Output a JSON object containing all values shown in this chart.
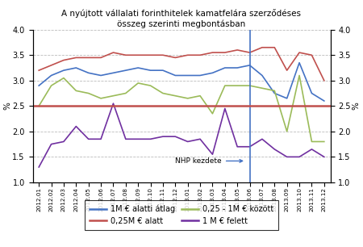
{
  "title": "A nyújtott vállalati forinthitelek kamatfelára szerződéses\nösszeg szerinti megbontásban",
  "ylabel": "%",
  "ylabel_right": "%",
  "ylim": [
    1.0,
    4.0
  ],
  "yticks": [
    1.0,
    1.5,
    2.0,
    2.5,
    3.0,
    3.5,
    4.0
  ],
  "labels": [
    "2012.01",
    "2012.02",
    "2012.03",
    "2012.04",
    "2012.05",
    "2012.06",
    "2012.07",
    "2012.08",
    "2012.09",
    "2012.10",
    "2012.11",
    "2012.12",
    "2013.01",
    "2013.02",
    "2013.03",
    "2013.04",
    "2013.05",
    "2013.06",
    "2013.07",
    "2013.08",
    "2013.09",
    "2013.10",
    "2013.11",
    "2013.12"
  ],
  "nhp_index": 17,
  "nhp_label": "NHP kezdete",
  "blue_line": [
    2.9,
    3.1,
    3.2,
    3.25,
    3.15,
    3.1,
    3.15,
    3.2,
    3.25,
    3.2,
    3.2,
    3.1,
    3.1,
    3.1,
    3.15,
    3.25,
    3.25,
    3.3,
    3.1,
    2.75,
    2.65,
    3.35,
    2.75,
    2.6
  ],
  "red_line": [
    3.2,
    3.3,
    3.4,
    3.45,
    3.45,
    3.45,
    3.55,
    3.5,
    3.5,
    3.5,
    3.5,
    3.45,
    3.5,
    3.5,
    3.55,
    3.55,
    3.6,
    3.55,
    3.65,
    3.65,
    3.2,
    3.55,
    3.5,
    3.0
  ],
  "green_line": [
    2.5,
    2.9,
    3.05,
    2.8,
    2.75,
    2.65,
    2.7,
    2.75,
    2.95,
    2.9,
    2.75,
    2.7,
    2.65,
    2.7,
    2.35,
    2.9,
    2.9,
    2.9,
    2.85,
    2.8,
    2.0,
    3.1,
    1.8,
    1.8
  ],
  "purple_line": [
    1.3,
    1.75,
    1.8,
    2.1,
    1.85,
    1.85,
    2.55,
    1.85,
    1.85,
    1.85,
    1.9,
    1.9,
    1.8,
    1.85,
    1.55,
    2.45,
    1.7,
    1.7,
    1.85,
    1.65,
    1.5,
    1.5,
    1.65,
    1.5
  ],
  "red_flat": 2.5,
  "blue_color": "#4472C4",
  "red_color": "#C0504D",
  "green_color": "#9BBB59",
  "purple_color": "#7030A0",
  "red_flat_color": "#C0504D",
  "legend_labels": [
    "1M € alatti átlag",
    "0,25M € alatt",
    "0,25 - 1M € között",
    "1 M € felett"
  ],
  "background_color": "#FFFFFF",
  "grid_color": "#AAAAAA"
}
